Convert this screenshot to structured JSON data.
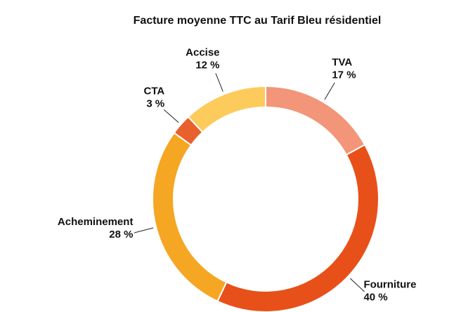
{
  "chart_data": {
    "type": "donut",
    "title": "Facture moyenne TTC au Tarif Bleu résidentiel",
    "categories": [
      "TVA",
      "Fourniture",
      "Acheminement",
      "CTA",
      "Accise"
    ],
    "values": [
      17,
      40,
      28,
      3,
      12
    ],
    "value_labels": [
      "17 %",
      "40 %",
      "28 %",
      "3 %",
      "12 %"
    ],
    "colors": [
      "#f29579",
      "#e8501a",
      "#f5a623",
      "#e8602c",
      "#fdcb5c"
    ]
  }
}
